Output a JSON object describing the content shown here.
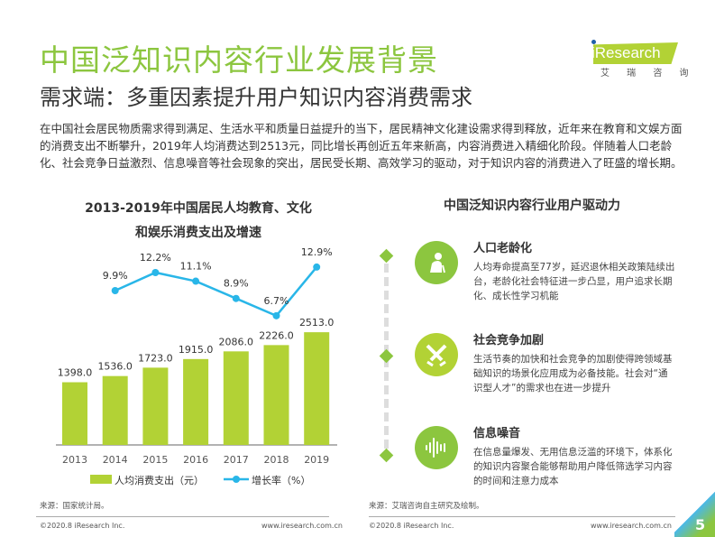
{
  "header": {
    "title": "中国泛知识内容行业发展背景",
    "subtitle": "需求端：多重因素提升用户知识内容消费需求",
    "logo_text": "iResearch",
    "logo_cn": "艾 瑞 咨 询"
  },
  "intro": "在中国社会居民物质需求得到满足、生活水平和质量日益提升的当下，居民精神文化建设需求得到释放，近年来在教育和文娱方面的消费支出不断攀升，2019年人均消费达到2513元，同比增长再创近五年来新高，内容消费进入精细化阶段。伴随着人口老龄化、社会竞争日益激烈、信息噪音等社会现象的突出，居民受长期、高效学习的驱动，对于知识内容的消费进入了旺盛的增长期。",
  "chart_data": {
    "type": "bar+line",
    "title_line1": "2013-2019年中国居民人均教育、文化",
    "title_line2": "和娱乐消费支出及增速",
    "categories": [
      "2013",
      "2014",
      "2015",
      "2016",
      "2017",
      "2018",
      "2019"
    ],
    "series": [
      {
        "name": "人均消费支出（元）",
        "type": "bar",
        "color": "#b2d235",
        "values": [
          1398.0,
          1536.0,
          1723.0,
          1915.0,
          2086.0,
          2226.0,
          2513.0
        ],
        "labels": [
          "1398.0",
          "1536.0",
          "1723.0",
          "1915.0",
          "2086.0",
          "2226.0",
          "2513.0"
        ]
      },
      {
        "name": "增长率（%）",
        "type": "line",
        "color": "#29b6e8",
        "values": [
          null,
          9.9,
          12.2,
          11.1,
          8.9,
          6.7,
          12.9
        ],
        "labels": [
          "",
          "9.9%",
          "12.2%",
          "11.1%",
          "8.9%",
          "6.7%",
          "12.9%"
        ]
      }
    ],
    "grid": false,
    "legend": "bottom"
  },
  "right": {
    "title": "中国泛知识内容行业用户驱动力",
    "drivers": [
      {
        "title": "人口老龄化",
        "text": "人均寿命提高至77岁，延迟退休相关政策陆续出台，老龄化社会特征进一步凸显，用户追求长期化、成长性学习机能",
        "icon": "elderly-person-icon",
        "color": "#8cc63f"
      },
      {
        "title": "社会竞争加剧",
        "text": "生活节奏的加快和社会竞争的加剧使得跨领域基础知识的场景化应用成为必备技能。社会对“通识型人才”的需求也在进一步提升",
        "icon": "crossed-swords-icon",
        "color": "#b2d235"
      },
      {
        "title": "信息噪音",
        "text": "在信息量爆发、无用信息泛滥的环境下，体系化的知识内容聚合能够帮助用户降低筛选学习内容的时间和注意力成本",
        "icon": "sound-wave-icon",
        "color": "#8cc63f"
      }
    ]
  },
  "sources": {
    "left": "来源：国家统计局。",
    "right": "来源：艾瑞咨询自主研究及绘制。"
  },
  "footer": {
    "copyright": "©2020.8 iResearch Inc.",
    "url": "www.iresearch.com.cn",
    "page": "5"
  }
}
